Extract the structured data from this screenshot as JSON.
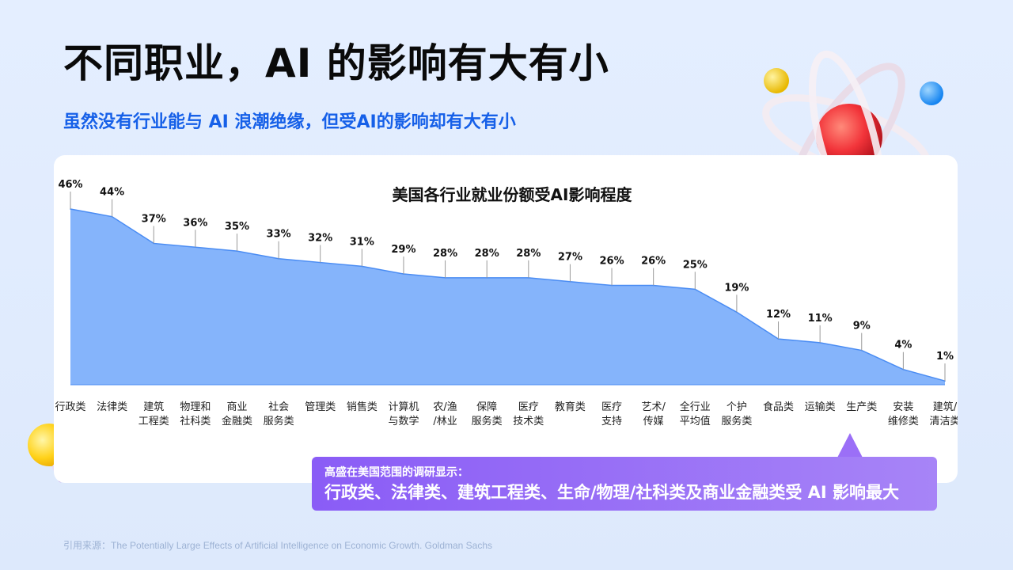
{
  "page": {
    "title": "不同职业，AI 的影响有大有小",
    "subtitle": "虽然没有行业能与 AI 浪潮绝缘，但受AI的影响却有大有小"
  },
  "note": {
    "head": "高盛在美国范围的调研显示：",
    "body": "行政类、法律类、建筑工程类、生命/物理/社科类及商业金融类受 AI 影响最大"
  },
  "source": "引用来源：The Potentially Large Effects of Artificial Intelligence on Economic Growth. Goldman Sachs",
  "colors": {
    "accent": "#1660e8",
    "area_fill": "#85b4fb",
    "area_line": "#4a8cf3",
    "note_bg": "#8a5cf6"
  },
  "chart_data": {
    "type": "area",
    "title": "美国各行业就业份额受AI影响程度",
    "xlabel": "",
    "ylabel": "",
    "ylim": [
      0,
      46
    ],
    "unit": "%",
    "categories": [
      [
        "行政类"
      ],
      [
        "法律类"
      ],
      [
        "建筑",
        "工程类"
      ],
      [
        "物理和",
        "社科类"
      ],
      [
        "商业",
        "金融类"
      ],
      [
        "社会",
        "服务类"
      ],
      [
        "管理类"
      ],
      [
        "销售类"
      ],
      [
        "计算机",
        "与数学"
      ],
      [
        "农/渔",
        "/林业"
      ],
      [
        "保障",
        "服务类"
      ],
      [
        "医疗",
        "技术类"
      ],
      [
        "教育类"
      ],
      [
        "医疗",
        "支持"
      ],
      [
        "艺术/",
        "传媒"
      ],
      [
        "全行业",
        "平均值"
      ],
      [
        "个护",
        "服务类"
      ],
      [
        "食品类"
      ],
      [
        "运输类"
      ],
      [
        "生产类"
      ],
      [
        "安装",
        "维修类"
      ],
      [
        "建筑/",
        "清洁类"
      ]
    ],
    "values": [
      46,
      44,
      37,
      36,
      35,
      33,
      32,
      31,
      29,
      28,
      28,
      28,
      27,
      26,
      26,
      25,
      19,
      12,
      11,
      9,
      4,
      1
    ],
    "labels": [
      "46%",
      "44%",
      "37%",
      "36%",
      "35%",
      "33%",
      "32%",
      "31%",
      "29%",
      "28%",
      "28%",
      "28%",
      "27%",
      "26%",
      "26%",
      "25%",
      "19%",
      "12%",
      "11%",
      "9%",
      "4%",
      "1%"
    ]
  }
}
